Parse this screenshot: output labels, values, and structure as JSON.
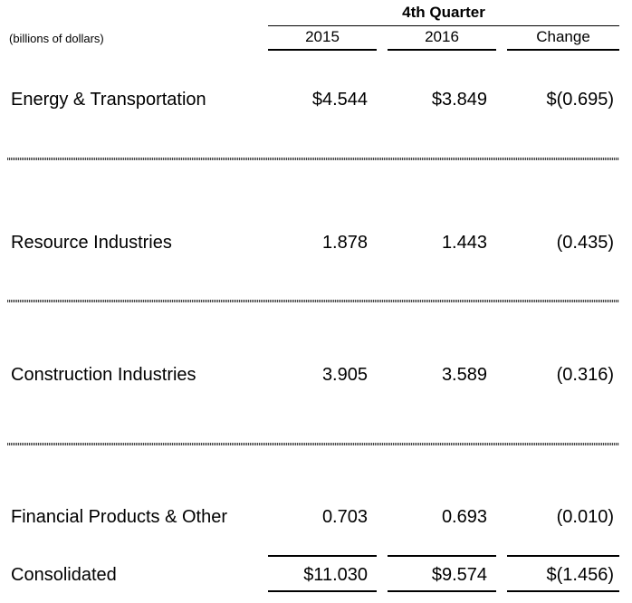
{
  "table": {
    "group_header": "4th Quarter",
    "units_label": "(billions of dollars)",
    "columns": [
      "2015",
      "2016",
      "Change"
    ],
    "rows": [
      {
        "label": "Energy & Transportation",
        "values": [
          "$4.544",
          "$3.849",
          "$(0.695)"
        ]
      },
      {
        "label": "Resource Industries",
        "values": [
          "1.878",
          "1.443",
          "(0.435)"
        ]
      },
      {
        "label": "Construction Industries",
        "values": [
          "3.905",
          "3.589",
          "(0.316)"
        ]
      },
      {
        "label": "Financial Products & Other",
        "values": [
          "0.703",
          "0.693",
          "(0.010)"
        ]
      }
    ],
    "total": {
      "label": "Consolidated",
      "values": [
        "$11.030",
        "$9.574",
        "$(1.456)"
      ]
    }
  }
}
